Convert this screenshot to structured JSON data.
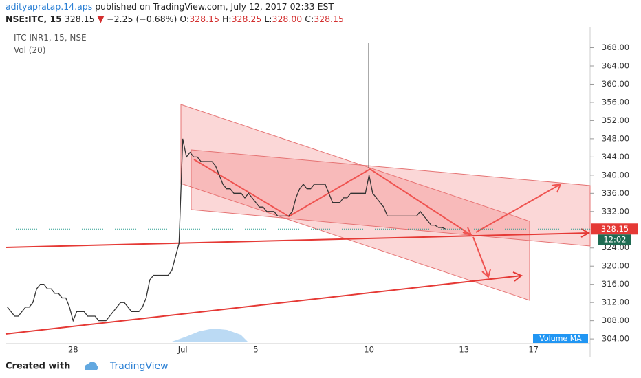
{
  "header": {
    "author": "adityapratap.14.aps",
    "published": "published on TradingView.com, July 12, 2017 02:33 EST",
    "symbol": "NSE:ITC, 15",
    "last": "328.15",
    "change_arrow": "▼",
    "change": "−2.25 (−0.68%)",
    "ohlc": [
      {
        "label": "O:",
        "value": "328.15"
      },
      {
        "label": "H:",
        "value": "328.25"
      },
      {
        "label": "L:",
        "value": "328.00"
      },
      {
        "label": "C:",
        "value": "328.15"
      }
    ]
  },
  "legend": {
    "series_name": "ITC INR1, 15, NSE",
    "volume": "Vol (20)",
    "volume_ma": "Volume MA"
  },
  "chart_data": {
    "type": "line",
    "color": "#333333",
    "grid": false,
    "categories": [
      null,
      null,
      null,
      null,
      null,
      null,
      null,
      null,
      null,
      null,
      null,
      null,
      null,
      null,
      null,
      null,
      null,
      null,
      "28",
      null,
      null,
      null,
      null,
      null,
      null,
      null,
      null,
      null,
      null,
      null,
      null,
      null,
      null,
      null,
      null,
      null,
      null,
      null,
      null,
      null,
      null,
      null,
      null,
      null,
      null,
      null,
      null,
      null,
      "Jul",
      null,
      null,
      null,
      null,
      null,
      null,
      null,
      null,
      null,
      null,
      null,
      null,
      null,
      null,
      null,
      null,
      null,
      null,
      null,
      "5",
      null,
      null,
      null,
      null,
      null,
      null,
      null,
      null,
      null,
      null,
      null,
      null,
      null,
      null,
      null,
      null,
      null,
      null,
      null,
      null,
      null,
      null,
      null,
      null,
      null,
      null,
      null,
      null,
      null,
      null,
      "10",
      null,
      null,
      null,
      null,
      null,
      null,
      null,
      null,
      null,
      null,
      null,
      null,
      null,
      null,
      null,
      null,
      null,
      null,
      null,
      null,
      null,
      null,
      null,
      null,
      null,
      "13",
      null,
      null,
      null,
      null,
      null,
      null,
      null,
      null,
      null,
      null,
      null,
      null,
      null,
      null,
      null,
      null,
      null,
      null,
      "17",
      null,
      null,
      null,
      null,
      null,
      null,
      null,
      null,
      null,
      null,
      null,
      null,
      null,
      null,
      null
    ],
    "values": [
      311,
      310,
      309,
      309,
      310,
      311,
      311,
      312,
      315,
      316,
      316,
      315,
      315,
      314,
      314,
      313,
      313,
      311,
      308,
      310,
      310,
      310,
      309,
      309,
      309,
      308,
      308,
      308,
      309,
      310,
      311,
      312,
      312,
      311,
      310,
      310,
      310,
      311,
      313,
      317,
      318,
      318,
      318,
      318,
      318,
      319,
      322,
      325,
      348,
      344,
      345,
      344,
      344,
      343,
      343,
      343,
      343,
      342,
      340,
      338,
      337,
      337,
      336,
      336,
      336,
      335,
      336,
      335,
      334,
      333,
      333,
      332,
      332,
      332,
      331,
      331,
      331,
      331,
      332,
      335,
      337,
      338,
      337,
      337,
      338,
      338,
      338,
      338,
      336,
      334,
      334,
      334,
      335,
      335,
      336,
      336,
      336,
      336,
      336,
      340,
      336,
      335,
      334,
      333,
      331,
      331,
      331,
      331,
      331,
      331,
      331,
      331,
      331,
      332,
      331,
      330,
      329,
      329,
      328.5,
      328.5,
      328.15,
      null,
      null,
      null,
      null,
      null,
      null,
      null,
      null,
      null,
      null,
      null,
      null,
      null,
      null,
      null,
      null,
      null,
      null,
      null,
      null,
      null,
      null,
      null,
      null,
      null,
      null,
      null,
      null,
      null,
      null,
      null,
      null,
      null,
      null,
      null,
      null,
      null,
      null,
      null
    ],
    "ylim": [
      302.96,
      372.46
    ],
    "yticks": [
      {
        "value": 304,
        "label": "304.00"
      },
      {
        "value": 308,
        "label": "308.00"
      },
      {
        "value": 312,
        "label": "312.00"
      },
      {
        "value": 316,
        "label": "316.00"
      },
      {
        "value": 320,
        "label": "320.00"
      },
      {
        "value": 324,
        "label": "324.00"
      },
      {
        "value": 328,
        "label": "328.00"
      },
      {
        "value": 332,
        "label": "332.00"
      },
      {
        "value": 336,
        "label": "336.00"
      },
      {
        "value": 340,
        "label": "340.00"
      },
      {
        "value": 344,
        "label": "344.00"
      },
      {
        "value": 348,
        "label": "348.00"
      },
      {
        "value": 352,
        "label": "352.00"
      },
      {
        "value": 356,
        "label": "356.00"
      },
      {
        "value": 360,
        "label": "360.00"
      },
      {
        "value": 364,
        "label": "364.00"
      },
      {
        "value": 368,
        "label": "368.00"
      }
    ],
    "last_price_label": "328.15",
    "countdown": "12:02"
  },
  "footer": {
    "created": "Created with",
    "brand": "TradingView"
  }
}
